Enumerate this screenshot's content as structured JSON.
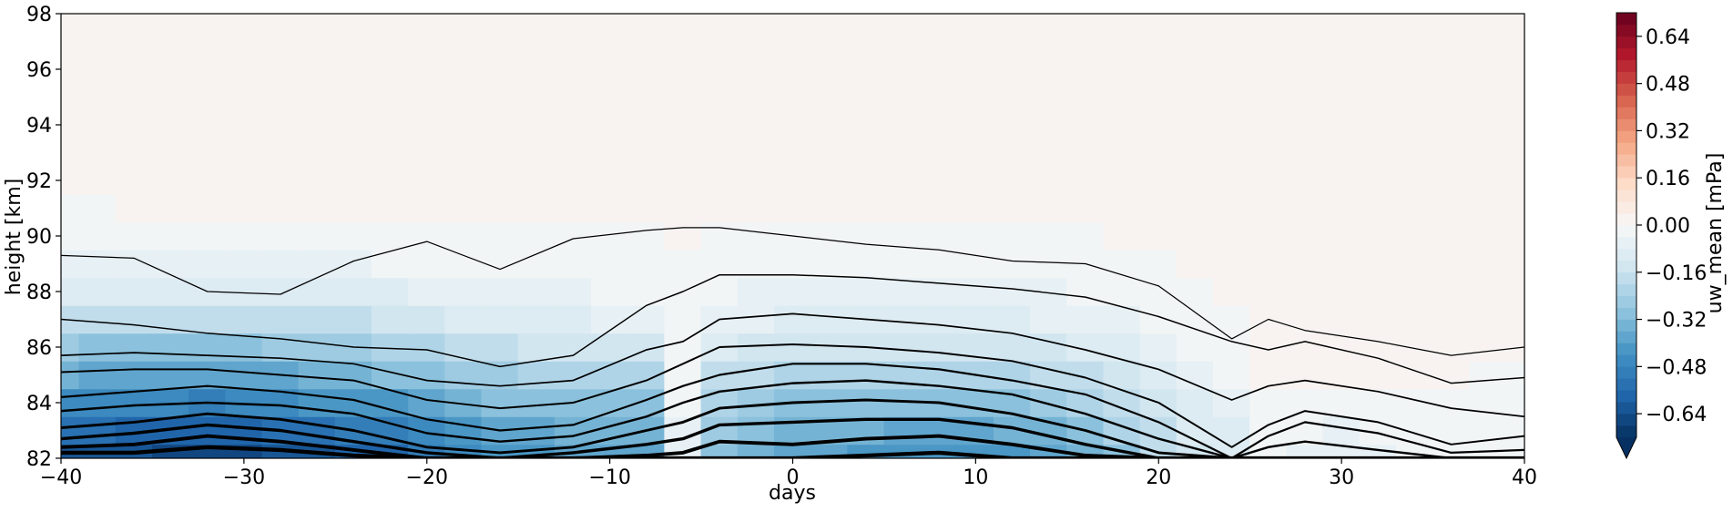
{
  "chart_data": {
    "type": "heatmap",
    "title": "",
    "xlabel": "days",
    "ylabel": "height [km]",
    "xlim": [
      -40,
      40
    ],
    "ylim": [
      82,
      98
    ],
    "x_ticks": [
      -40,
      -30,
      -20,
      -10,
      0,
      10,
      20,
      30,
      40
    ],
    "y_ticks": [
      82,
      84,
      86,
      88,
      90,
      92,
      94,
      96,
      98
    ],
    "x_tick_labels": [
      "−40",
      "−30",
      "−20",
      "−10",
      "0",
      "10",
      "20",
      "30",
      "40"
    ],
    "y_tick_labels": [
      "82",
      "84",
      "86",
      "88",
      "90",
      "92",
      "94",
      "96",
      "98"
    ],
    "grid": false,
    "colormap": "RdBu_r",
    "colorbar": {
      "label": "uw_mean [mPa]",
      "range": [
        -0.72,
        0.72
      ],
      "ticks": [
        -0.64,
        -0.48,
        -0.32,
        -0.16,
        0.0,
        0.16,
        0.32,
        0.48,
        0.64
      ],
      "tick_labels": [
        "−0.64",
        "−0.48",
        "−0.32",
        "−0.16",
        "0.00",
        "0.16",
        "0.32",
        "0.48",
        "0.64"
      ],
      "extend": "min",
      "level_step": 0.04,
      "colors": [
        "#053061",
        "#2166ac",
        "#4393c3",
        "#92c5de",
        "#d1e5f0",
        "#f7f7f7",
        "#fddbc7",
        "#f4a582",
        "#d6604d",
        "#b2182b",
        "#67001f"
      ]
    },
    "field": {
      "x": [
        -40,
        -38,
        -36,
        -34,
        -32,
        -30,
        -28,
        -26,
        -24,
        -22,
        -20,
        -18,
        -16,
        -14,
        -12,
        -10,
        -8,
        -6,
        -4,
        -2,
        0,
        2,
        4,
        6,
        8,
        10,
        12,
        14,
        16,
        18,
        20,
        22,
        24,
        26,
        28,
        30,
        32,
        34,
        36,
        38,
        40
      ],
      "y": [
        82,
        83,
        84,
        85,
        86,
        87,
        88,
        89,
        90,
        91,
        92,
        93,
        94,
        95,
        96,
        97,
        98
      ],
      "values": [
        [
          -0.62,
          -0.63,
          -0.64,
          -0.66,
          -0.67,
          -0.66,
          -0.63,
          -0.61,
          -0.6,
          -0.56,
          -0.52,
          -0.48,
          -0.44,
          -0.42,
          -0.4,
          -0.4,
          -0.38,
          -0.06,
          -0.3,
          -0.36,
          -0.38,
          -0.4,
          -0.42,
          -0.43,
          -0.44,
          -0.43,
          -0.42,
          -0.39,
          -0.34,
          -0.28,
          -0.2,
          -0.14,
          -0.1,
          -0.04,
          -0.05,
          -0.06,
          -0.05,
          -0.04,
          -0.02,
          -0.03,
          -0.04
        ],
        [
          -0.54,
          -0.55,
          -0.56,
          -0.58,
          -0.59,
          -0.58,
          -0.55,
          -0.53,
          -0.52,
          -0.49,
          -0.46,
          -0.42,
          -0.39,
          -0.37,
          -0.35,
          -0.35,
          -0.33,
          -0.05,
          -0.27,
          -0.31,
          -0.33,
          -0.35,
          -0.36,
          -0.37,
          -0.38,
          -0.37,
          -0.36,
          -0.33,
          -0.29,
          -0.24,
          -0.17,
          -0.12,
          -0.09,
          -0.03,
          -0.04,
          -0.05,
          -0.04,
          -0.03,
          -0.02,
          -0.02,
          -0.03
        ],
        [
          -0.45,
          -0.46,
          -0.47,
          -0.48,
          -0.49,
          -0.48,
          -0.46,
          -0.44,
          -0.43,
          -0.41,
          -0.38,
          -0.35,
          -0.32,
          -0.3,
          -0.29,
          -0.29,
          -0.28,
          -0.04,
          -0.22,
          -0.26,
          -0.28,
          -0.29,
          -0.3,
          -0.31,
          -0.31,
          -0.31,
          -0.29,
          -0.27,
          -0.24,
          -0.19,
          -0.14,
          -0.1,
          -0.07,
          -0.02,
          -0.03,
          -0.04,
          -0.03,
          -0.02,
          -0.01,
          -0.02,
          -0.02
        ],
        [
          -0.36,
          -0.37,
          -0.37,
          -0.38,
          -0.39,
          -0.38,
          -0.37,
          -0.35,
          -0.34,
          -0.32,
          -0.3,
          -0.27,
          -0.25,
          -0.23,
          -0.22,
          -0.22,
          -0.22,
          -0.03,
          -0.17,
          -0.2,
          -0.21,
          -0.22,
          -0.23,
          -0.23,
          -0.24,
          -0.23,
          -0.22,
          -0.2,
          -0.18,
          -0.14,
          -0.1,
          -0.07,
          -0.04,
          0.01,
          0.01,
          0.0,
          0.01,
          0.01,
          0.0,
          -0.01,
          -0.01
        ],
        [
          -0.27,
          -0.28,
          -0.28,
          -0.29,
          -0.29,
          -0.28,
          -0.27,
          -0.26,
          -0.25,
          -0.23,
          -0.21,
          -0.19,
          -0.17,
          -0.16,
          -0.15,
          -0.14,
          -0.14,
          -0.02,
          -0.11,
          -0.13,
          -0.14,
          -0.15,
          -0.15,
          -0.15,
          -0.16,
          -0.15,
          -0.14,
          -0.13,
          -0.11,
          -0.09,
          -0.06,
          -0.04,
          -0.02,
          0.02,
          0.03,
          0.03,
          0.03,
          0.02,
          0.01,
          0.01,
          0.0
        ],
        [
          -0.19,
          -0.19,
          -0.19,
          -0.2,
          -0.2,
          -0.19,
          -0.19,
          -0.18,
          -0.17,
          -0.15,
          -0.14,
          -0.12,
          -0.11,
          -0.1,
          -0.09,
          -0.08,
          -0.08,
          -0.02,
          -0.07,
          -0.08,
          -0.09,
          -0.09,
          -0.1,
          -0.1,
          -0.1,
          -0.1,
          -0.09,
          -0.08,
          -0.07,
          -0.06,
          -0.04,
          -0.02,
          -0.01,
          0.01,
          0.02,
          0.02,
          0.02,
          0.01,
          0.01,
          0.0,
          0.0
        ],
        [
          -0.11,
          -0.11,
          -0.11,
          -0.12,
          -0.12,
          -0.11,
          -0.11,
          -0.1,
          -0.1,
          -0.09,
          -0.08,
          -0.07,
          -0.06,
          -0.05,
          -0.05,
          -0.04,
          -0.04,
          -0.01,
          -0.04,
          -0.05,
          -0.05,
          -0.05,
          -0.05,
          -0.06,
          -0.06,
          -0.06,
          -0.05,
          -0.05,
          -0.04,
          -0.03,
          -0.02,
          -0.01,
          0.0,
          0.01,
          0.01,
          0.01,
          0.01,
          0.01,
          0.0,
          0.0,
          0.0
        ],
        [
          -0.06,
          -0.06,
          -0.06,
          -0.06,
          -0.06,
          -0.06,
          -0.06,
          -0.05,
          -0.05,
          -0.04,
          -0.04,
          -0.03,
          -0.03,
          -0.02,
          -0.02,
          -0.02,
          -0.02,
          -0.01,
          -0.02,
          -0.02,
          -0.02,
          -0.02,
          -0.02,
          -0.03,
          -0.03,
          -0.03,
          -0.02,
          -0.02,
          -0.02,
          -0.01,
          -0.01,
          0.0,
          0.0,
          0.0,
          0.0,
          0.0,
          0.0,
          0.0,
          0.0,
          0.0,
          0.0
        ],
        [
          -0.03,
          -0.03,
          -0.03,
          -0.03,
          -0.02,
          -0.02,
          -0.02,
          -0.02,
          -0.02,
          -0.01,
          -0.01,
          -0.01,
          -0.01,
          -0.01,
          -0.01,
          -0.01,
          -0.01,
          0.0,
          -0.01,
          -0.01,
          -0.01,
          -0.01,
          -0.01,
          -0.01,
          -0.01,
          -0.01,
          -0.01,
          -0.01,
          -0.01,
          0.0,
          0.0,
          0.0,
          0.0,
          0.0,
          0.0,
          0.0,
          0.0,
          0.0,
          0.0,
          0.0,
          0.0
        ],
        [
          -0.01,
          -0.01,
          0.0,
          0.0,
          0.0,
          0.0,
          0.0,
          0.01,
          0.01,
          0.01,
          0.01,
          0.01,
          0.01,
          0.01,
          0.01,
          0.01,
          0.01,
          0.01,
          0.01,
          0.01,
          0.01,
          0.01,
          0.01,
          0.01,
          0.01,
          0.01,
          0.01,
          0.01,
          0.01,
          0.01,
          0.01,
          0.01,
          0.01,
          0.0,
          0.01,
          0.01,
          0.01,
          0.01,
          0.01,
          0.01,
          0.01
        ],
        [
          0.01,
          0.01,
          0.02,
          0.02,
          0.02,
          0.02,
          0.02,
          0.02,
          0.02,
          0.02,
          0.02,
          0.02,
          0.02,
          0.02,
          0.02,
          0.02,
          0.02,
          0.02,
          0.02,
          0.02,
          0.02,
          0.02,
          0.02,
          0.02,
          0.02,
          0.02,
          0.02,
          0.02,
          0.02,
          0.02,
          0.02,
          0.02,
          0.02,
          0.0,
          0.02,
          0.02,
          0.02,
          0.02,
          0.02,
          0.02,
          0.02
        ],
        [
          0.02,
          0.02,
          0.02,
          0.02,
          0.02,
          0.02,
          0.02,
          0.02,
          0.02,
          0.02,
          0.02,
          0.02,
          0.02,
          0.02,
          0.02,
          0.02,
          0.02,
          0.02,
          0.02,
          0.02,
          0.02,
          0.02,
          0.02,
          0.02,
          0.02,
          0.02,
          0.02,
          0.02,
          0.02,
          0.02,
          0.02,
          0.02,
          0.02,
          0.0,
          0.02,
          0.02,
          0.02,
          0.02,
          0.02,
          0.02,
          0.02
        ],
        [
          0.02,
          0.02,
          0.02,
          0.02,
          0.02,
          0.02,
          0.02,
          0.02,
          0.02,
          0.02,
          0.02,
          0.02,
          0.02,
          0.02,
          0.02,
          0.02,
          0.02,
          0.02,
          0.02,
          0.02,
          0.02,
          0.02,
          0.02,
          0.02,
          0.02,
          0.02,
          0.02,
          0.02,
          0.02,
          0.02,
          0.02,
          0.02,
          0.02,
          0.0,
          0.02,
          0.02,
          0.02,
          0.02,
          0.02,
          0.02,
          0.02
        ],
        [
          0.02,
          0.02,
          0.02,
          0.02,
          0.02,
          0.02,
          0.02,
          0.02,
          0.02,
          0.02,
          0.02,
          0.02,
          0.02,
          0.02,
          0.02,
          0.02,
          0.02,
          0.02,
          0.02,
          0.02,
          0.02,
          0.02,
          0.02,
          0.02,
          0.02,
          0.02,
          0.02,
          0.02,
          0.02,
          0.02,
          0.02,
          0.02,
          0.02,
          0.0,
          0.02,
          0.02,
          0.02,
          0.02,
          0.02,
          0.02,
          0.02
        ],
        [
          0.02,
          0.02,
          0.02,
          0.02,
          0.02,
          0.02,
          0.02,
          0.02,
          0.02,
          0.02,
          0.02,
          0.02,
          0.02,
          0.02,
          0.02,
          0.02,
          0.02,
          0.02,
          0.02,
          0.02,
          0.02,
          0.02,
          0.02,
          0.02,
          0.02,
          0.02,
          0.02,
          0.02,
          0.02,
          0.02,
          0.02,
          0.02,
          0.02,
          0.0,
          0.02,
          0.02,
          0.02,
          0.02,
          0.02,
          0.02,
          0.02
        ],
        [
          0.02,
          0.02,
          0.02,
          0.02,
          0.02,
          0.02,
          0.02,
          0.02,
          0.02,
          0.02,
          0.02,
          0.02,
          0.02,
          0.02,
          0.02,
          0.02,
          0.02,
          0.02,
          0.02,
          0.02,
          0.02,
          0.02,
          0.02,
          0.02,
          0.02,
          0.02,
          0.02,
          0.02,
          0.02,
          0.02,
          0.02,
          0.02,
          0.02,
          0.0,
          0.02,
          0.02,
          0.02,
          0.02,
          0.02,
          0.02,
          0.02
        ],
        [
          0.02,
          0.02,
          0.02,
          0.02,
          0.02,
          0.02,
          0.02,
          0.02,
          0.02,
          0.02,
          0.02,
          0.02,
          0.02,
          0.02,
          0.02,
          0.02,
          0.02,
          0.02,
          0.02,
          0.02,
          0.02,
          0.02,
          0.02,
          0.02,
          0.02,
          0.02,
          0.02,
          0.02,
          0.02,
          0.02,
          0.02,
          0.02,
          0.02,
          0.0,
          0.02,
          0.02,
          0.02,
          0.02,
          0.02,
          0.02,
          0.02
        ]
      ]
    },
    "contour_lines": {
      "color": "#000000",
      "x": [
        -40,
        -36,
        -32,
        -28,
        -24,
        -20,
        -16,
        -12,
        -8,
        -6,
        -4,
        0,
        4,
        8,
        12,
        16,
        20,
        24,
        26,
        28,
        32,
        36,
        40
      ],
      "levels": [
        {
          "level": -0.04,
          "y": [
            89.3,
            89.2,
            88.0,
            87.9,
            89.1,
            89.8,
            88.8,
            89.9,
            90.2,
            90.3,
            90.3,
            90.0,
            89.7,
            89.5,
            89.1,
            89.0,
            88.2,
            86.3,
            87.0,
            86.6,
            86.2,
            85.7,
            86.0
          ]
        },
        {
          "level": -0.08,
          "y": [
            87.0,
            86.8,
            86.5,
            86.3,
            86.0,
            85.9,
            85.3,
            85.7,
            87.5,
            88.0,
            88.6,
            88.6,
            88.5,
            88.3,
            88.1,
            87.8,
            87.1,
            86.2,
            85.9,
            86.2,
            85.6,
            84.7,
            84.9
          ]
        },
        {
          "level": -0.12,
          "y": [
            85.7,
            85.8,
            85.7,
            85.6,
            85.4,
            84.8,
            84.6,
            84.8,
            85.9,
            86.2,
            87.0,
            87.2,
            87.0,
            86.8,
            86.5,
            85.9,
            85.2,
            84.1,
            84.6,
            84.8,
            84.4,
            83.8,
            83.5
          ]
        },
        {
          "level": -0.16,
          "y": [
            85.1,
            85.2,
            85.2,
            85.0,
            84.8,
            84.1,
            83.8,
            84.0,
            84.8,
            85.4,
            86.0,
            86.1,
            86.0,
            85.8,
            85.5,
            84.9,
            84.0,
            82.4,
            83.2,
            83.7,
            83.3,
            82.5,
            82.8
          ]
        },
        {
          "level": -0.2,
          "y": [
            84.2,
            84.4,
            84.6,
            84.4,
            84.1,
            83.4,
            83.0,
            83.2,
            84.1,
            84.6,
            85.0,
            85.4,
            85.4,
            85.2,
            84.8,
            84.3,
            83.3,
            82.0,
            82.8,
            83.3,
            82.9,
            82.2,
            82.3
          ]
        },
        {
          "level": -0.24,
          "y": [
            83.7,
            83.9,
            84.0,
            83.9,
            83.6,
            82.9,
            82.6,
            82.8,
            83.5,
            84.0,
            84.4,
            84.7,
            84.8,
            84.6,
            84.3,
            83.6,
            82.7,
            82.0,
            82.4,
            82.6,
            82.3,
            82.0,
            82.0
          ]
        },
        {
          "level": -0.32,
          "y": [
            83.1,
            83.3,
            83.6,
            83.4,
            83.0,
            82.4,
            82.2,
            82.4,
            83.0,
            83.3,
            83.8,
            84.0,
            84.1,
            84.0,
            83.6,
            83.0,
            82.2,
            82.0,
            82.0,
            82.0,
            82.0,
            82.0,
            82.0
          ]
        },
        {
          "level": -0.4,
          "y": [
            82.7,
            82.9,
            83.2,
            83.0,
            82.6,
            82.2,
            82.0,
            82.2,
            82.5,
            82.7,
            83.2,
            83.3,
            83.4,
            83.4,
            83.1,
            82.5,
            82.0,
            82.0,
            82.0,
            82.0,
            82.0,
            82.0,
            82.0
          ]
        },
        {
          "level": -0.48,
          "y": [
            82.4,
            82.5,
            82.8,
            82.6,
            82.3,
            82.0,
            82.0,
            82.0,
            82.1,
            82.2,
            82.6,
            82.5,
            82.7,
            82.8,
            82.5,
            82.1,
            82.0,
            82.0,
            82.0,
            82.0,
            82.0,
            82.0,
            82.0
          ]
        },
        {
          "level": -0.56,
          "y": [
            82.2,
            82.2,
            82.4,
            82.3,
            82.1,
            82.0,
            82.0,
            82.0,
            82.0,
            82.0,
            82.0,
            82.0,
            82.1,
            82.2,
            82.0,
            82.0,
            82.0,
            82.0,
            82.0,
            82.0,
            82.0,
            82.0,
            82.0
          ]
        }
      ]
    }
  }
}
